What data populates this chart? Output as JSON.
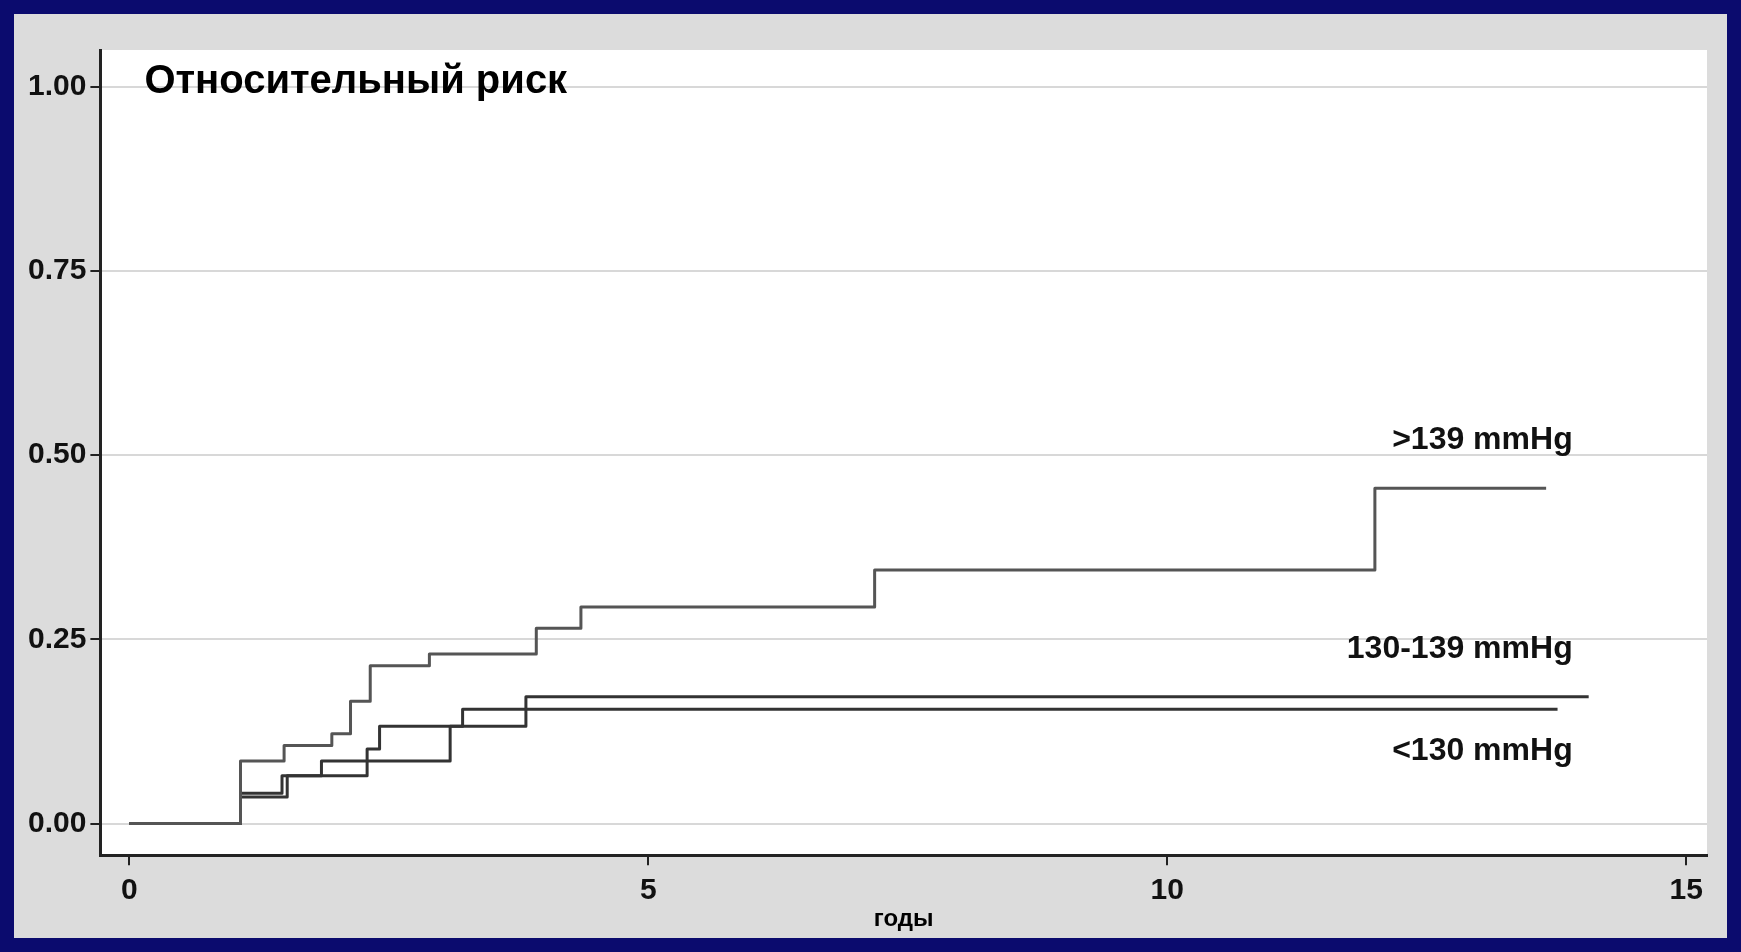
{
  "chart_data": {
    "type": "step",
    "title": "Относительный риск",
    "xlabel": "годы",
    "xlim": [
      -0.28,
      15.2
    ],
    "ylim": [
      -0.043,
      1.05
    ],
    "xticks": [
      0,
      5,
      10,
      15
    ],
    "yticks": [
      {
        "value": 0,
        "label": "0.00"
      },
      {
        "value": 0.25,
        "label": "0.25"
      },
      {
        "value": 0.5,
        "label": "0.50"
      },
      {
        "value": 0.75,
        "label": "0.75"
      },
      {
        "value": 1,
        "label": "1.00"
      }
    ],
    "grid": "y",
    "legend": false,
    "marker": "none",
    "line_style": "solid",
    "series": [
      {
        "name": ">139 mmHg",
        "color": "#555555",
        "x": [
          0,
          1.07,
          1.49,
          1.95,
          2.13,
          2.32,
          2.89,
          3.92,
          4.35,
          7.18,
          12.0,
          13.65
        ],
        "values": [
          0,
          0.085,
          0.106,
          0.122,
          0.166,
          0.214,
          0.23,
          0.265,
          0.294,
          0.344,
          0.455,
          0.455
        ]
      },
      {
        "name": "130-139 mmHg",
        "color": "#333333",
        "x": [
          0,
          1.07,
          1.47,
          1.85,
          3.09,
          3.82,
          14.06
        ],
        "values": [
          0,
          0.041,
          0.065,
          0.085,
          0.132,
          0.172,
          0.172
        ]
      },
      {
        "name": "<130 mmHg",
        "color": "#333333",
        "x": [
          0,
          1.07,
          1.52,
          2.29,
          2.41,
          3.21,
          13.76
        ],
        "values": [
          0,
          0.036,
          0.065,
          0.101,
          0.132,
          0.155,
          0.155
        ]
      }
    ]
  }
}
